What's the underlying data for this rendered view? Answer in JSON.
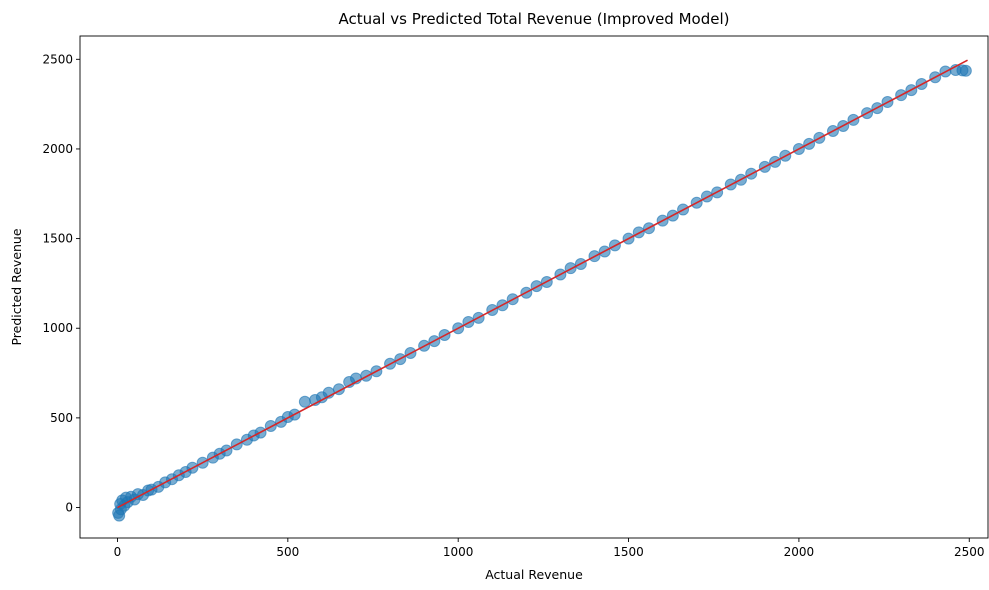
{
  "chart_data": {
    "type": "scatter",
    "title": "Actual vs Predicted Total Revenue (Improved Model)",
    "xlabel": "Actual Revenue",
    "ylabel": "Predicted Revenue",
    "xlim": [
      -110,
      2555
    ],
    "ylim": [
      -170,
      2630
    ],
    "xticks": [
      0,
      500,
      1000,
      1500,
      2000,
      2500
    ],
    "yticks": [
      0,
      500,
      1000,
      1500,
      2000,
      2500
    ],
    "grid": false,
    "colors": {
      "points": "#1f77b4",
      "reference_line": "#d62728",
      "axes": "#000000"
    },
    "reference_line": {
      "x": [
        0,
        2495
      ],
      "y": [
        0,
        2495
      ]
    },
    "series": [
      {
        "x": [
          2,
          5,
          8,
          10,
          14,
          20,
          25,
          30,
          40,
          50,
          60,
          75,
          90,
          100,
          120,
          140,
          160,
          180,
          200,
          220,
          250,
          280,
          300,
          320,
          350,
          380,
          400,
          420,
          450,
          480,
          500,
          520,
          550,
          580,
          600,
          620,
          650,
          680,
          700,
          730,
          760,
          800,
          830,
          860,
          900,
          930,
          960,
          1000,
          1030,
          1060,
          1100,
          1130,
          1160,
          1200,
          1230,
          1260,
          1300,
          1330,
          1360,
          1400,
          1430,
          1460,
          1500,
          1530,
          1560,
          1600,
          1630,
          1660,
          1700,
          1730,
          1760,
          1800,
          1830,
          1860,
          1900,
          1930,
          1960,
          2000,
          2030,
          2060,
          2100,
          2130,
          2160,
          2200,
          2230,
          2260,
          2300,
          2330,
          2360,
          2400,
          2430,
          2460,
          2480,
          2490
        ],
        "y": [
          -30,
          -45,
          20,
          -10,
          40,
          10,
          55,
          30,
          60,
          45,
          75,
          70,
          95,
          100,
          115,
          140,
          158,
          180,
          198,
          222,
          250,
          278,
          300,
          318,
          352,
          378,
          402,
          418,
          455,
          478,
          505,
          518,
          590,
          600,
          615,
          640,
          660,
          700,
          720,
          735,
          760,
          802,
          828,
          862,
          902,
          928,
          962,
          1000,
          1035,
          1058,
          1102,
          1128,
          1162,
          1198,
          1235,
          1258,
          1300,
          1335,
          1358,
          1402,
          1428,
          1462,
          1500,
          1535,
          1558,
          1600,
          1628,
          1662,
          1700,
          1735,
          1758,
          1802,
          1828,
          1862,
          1900,
          1928,
          1962,
          2000,
          2028,
          2062,
          2100,
          2128,
          2162,
          2200,
          2228,
          2262,
          2300,
          2328,
          2362,
          2400,
          2432,
          2440,
          2438,
          2436
        ]
      }
    ]
  }
}
